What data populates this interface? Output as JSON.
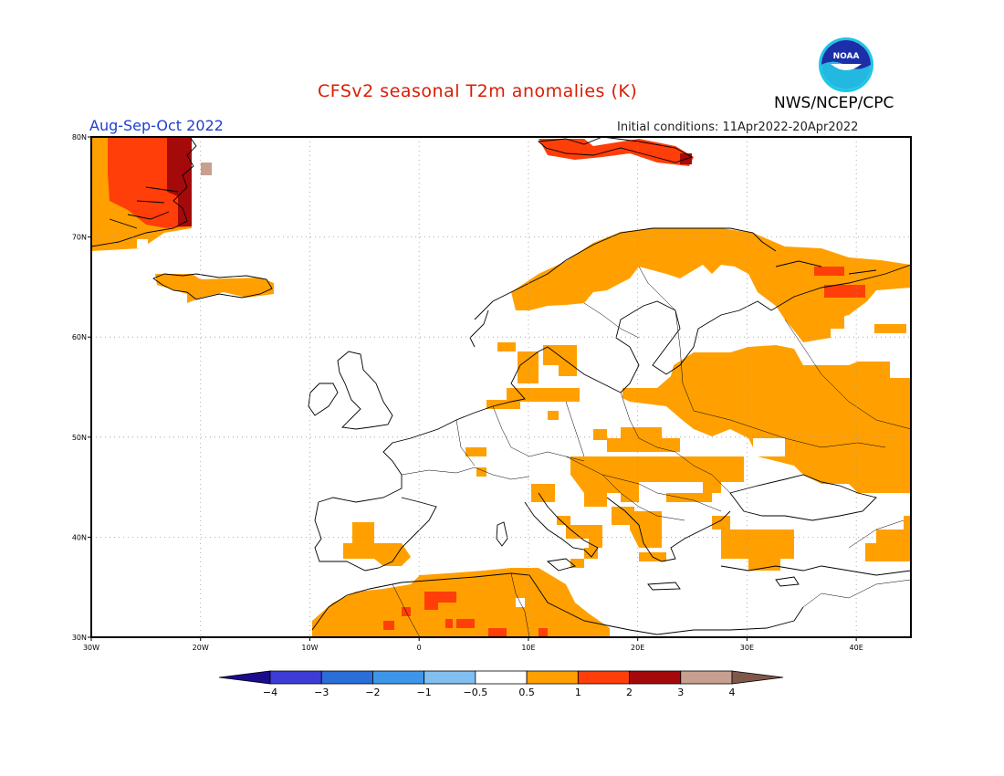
{
  "header": {
    "title": "CFSv2 seasonal T2m anomalies (K)",
    "season": "Aug-Sep-Oct 2022",
    "initial_conditions": "Initial conditions: 11Apr2022-20Apr2022",
    "agency": "NWS/NCEP/CPC",
    "logo_text": "NOAA"
  },
  "map": {
    "region": "Europe",
    "lon_range": [
      -30,
      45
    ],
    "lat_range": [
      30,
      80
    ],
    "lon_ticks": [
      "30W",
      "20W",
      "10W",
      "0",
      "10E",
      "20E",
      "30E",
      "40E"
    ],
    "lat_ticks": [
      "30N",
      "40N",
      "50N",
      "60N",
      "70N",
      "80N"
    ],
    "grid": "dotted"
  },
  "colorbar": {
    "colors": [
      "#1a0c8c",
      "#3d3dd6",
      "#2a6ed8",
      "#3e96e8",
      "#80bff0",
      "#ffffff",
      "#ffa000",
      "#ff3e0a",
      "#a40a0a",
      "#c8a090",
      "#80584a"
    ],
    "tick_labels": [
      "-4",
      "-3",
      "-2",
      "-1",
      "-0.5",
      "0.5",
      "1",
      "2",
      "3",
      "4"
    ]
  },
  "anomaly_regions": [
    {
      "name": "greenland-east",
      "level": "1 to 2"
    },
    {
      "name": "svalbard",
      "level": "1 to 2"
    },
    {
      "name": "iceland",
      "level": "0.5 to 1"
    },
    {
      "name": "scandinavia-coast",
      "level": "0.5 to 1"
    },
    {
      "name": "eastern-europe",
      "level": "0.5 to 1"
    },
    {
      "name": "north-africa",
      "level": "0.5 to 1"
    },
    {
      "name": "iberia",
      "level": "0.5 to 1"
    },
    {
      "name": "balkans",
      "level": "0.5 to 1"
    },
    {
      "name": "turkey-east",
      "level": "0.5 to 1"
    }
  ]
}
